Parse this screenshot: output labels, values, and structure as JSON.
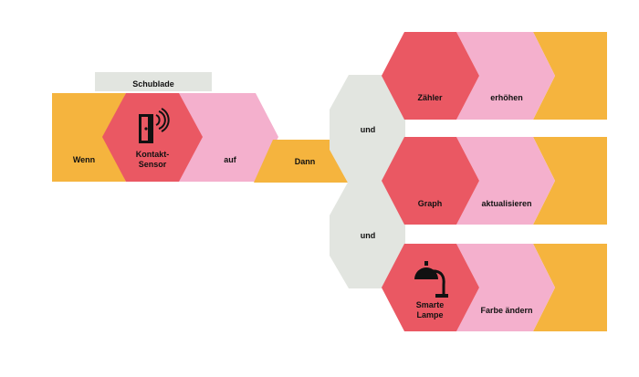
{
  "colors": {
    "orange": "#F5B43E",
    "red": "#EA5863",
    "pink": "#F4B0CD",
    "gray": "#E2E5E0",
    "icon": "#111111"
  },
  "trigger": {
    "group_label": "Schublade",
    "when": "Wenn",
    "sensor_line1": "Kontakt-",
    "sensor_line2": "Sensor",
    "sensor_icon": "contact-sensor-icon",
    "state": "auf"
  },
  "then_label": "Dann",
  "connectors": [
    "und",
    "und"
  ],
  "actions": [
    {
      "device": "Zähler",
      "action": "erhöhen"
    },
    {
      "device": "Graph",
      "action": "aktualisieren"
    },
    {
      "device_line1": "Smarte",
      "device_line2": "Lampe",
      "device_icon": "desk-lamp-icon",
      "action": "Farbe ändern"
    }
  ]
}
